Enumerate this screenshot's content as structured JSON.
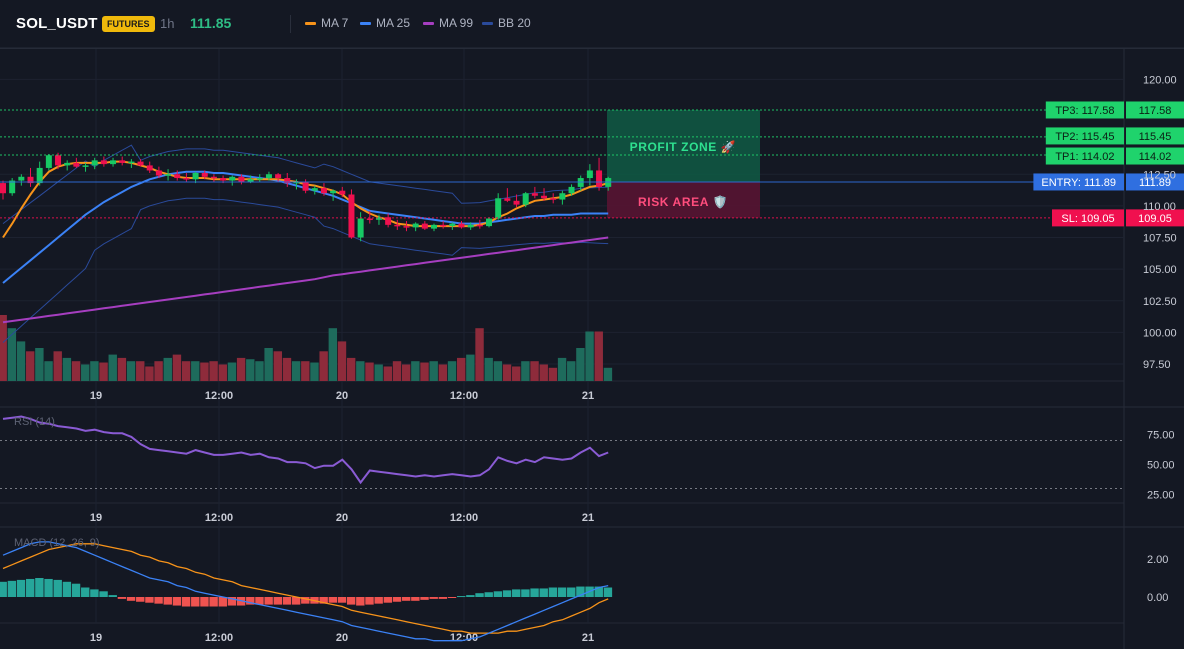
{
  "header": {
    "symbol": "SOL_USDT",
    "badge": "FUTURES",
    "timeframe": "1h",
    "last_price": "111.85",
    "indicators": [
      {
        "label": "MA 7",
        "color": "#f7931a"
      },
      {
        "label": "MA 25",
        "color": "#3b82f6"
      },
      {
        "label": "MA 99",
        "color": "#a63ec0"
      },
      {
        "label": "BB 20",
        "color": "#2a4a9a"
      }
    ]
  },
  "zones": {
    "profit": "PROFIT ZONE 🚀",
    "risk": "RISK AREA 🛡️"
  },
  "levels": [
    {
      "label": "TP3: 117.58",
      "price_text": "117.58",
      "price": 117.58,
      "color": "#1fd36c"
    },
    {
      "label": "TP2: 115.45",
      "price_text": "115.45",
      "price": 115.45,
      "color": "#1fd36c"
    },
    {
      "label": "TP1: 114.02",
      "price_text": "114.02",
      "price": 114.02,
      "color": "#1fd36c"
    },
    {
      "label": "ENTRY: 111.89",
      "price_text": "111.89",
      "price": 111.89,
      "color": "#2f6fe0"
    },
    {
      "label": "SL: 109.05",
      "price_text": "109.05",
      "price": 109.05,
      "color": "#f0104f"
    }
  ],
  "price_axis": [
    "120.00",
    "112.50",
    "110.00",
    "107.50",
    "105.00",
    "102.50",
    "100.00",
    "97.50"
  ],
  "current_price_tick": "112.50",
  "time_axis": [
    "19",
    "12:00",
    "20",
    "12:00",
    "21"
  ],
  "rsi": {
    "title": "RSI (14)",
    "axis": [
      "75.00",
      "50.00",
      "25.00"
    ]
  },
  "macd": {
    "title": "MACD (12, 26, 9)",
    "axis": [
      "2.00",
      "0.00"
    ]
  },
  "chart_data": {
    "type": "candlestick",
    "candles": [
      [
        111.8,
        112.0,
        110.5,
        111.0
      ],
      [
        111.0,
        112.2,
        110.8,
        112.0
      ],
      [
        112.0,
        112.5,
        111.6,
        112.3
      ],
      [
        112.3,
        113.0,
        111.5,
        111.8
      ],
      [
        111.8,
        113.5,
        111.6,
        113.0
      ],
      [
        113.0,
        114.1,
        112.8,
        114.0
      ],
      [
        114.0,
        114.2,
        112.9,
        113.2
      ],
      [
        113.2,
        113.6,
        112.8,
        113.4
      ],
      [
        113.4,
        113.8,
        113.0,
        113.1
      ],
      [
        113.1,
        113.4,
        112.7,
        113.2
      ],
      [
        113.2,
        113.8,
        112.9,
        113.6
      ],
      [
        113.6,
        113.9,
        113.1,
        113.3
      ],
      [
        113.3,
        113.8,
        113.1,
        113.6
      ],
      [
        113.6,
        113.9,
        113.2,
        113.4
      ],
      [
        113.4,
        113.7,
        113.0,
        113.5
      ],
      [
        113.5,
        113.7,
        113.1,
        113.2
      ],
      [
        113.2,
        113.5,
        112.6,
        112.8
      ],
      [
        112.8,
        113.1,
        112.2,
        112.4
      ],
      [
        112.4,
        112.9,
        112.0,
        112.5
      ],
      [
        112.5,
        112.8,
        112.0,
        112.2
      ],
      [
        112.2,
        112.6,
        111.9,
        112.1
      ],
      [
        112.1,
        112.7,
        111.8,
        112.6
      ],
      [
        112.6,
        112.8,
        112.1,
        112.3
      ],
      [
        112.3,
        112.5,
        111.9,
        112.2
      ],
      [
        112.2,
        112.4,
        111.8,
        112.0
      ],
      [
        112.0,
        112.4,
        111.6,
        112.3
      ],
      [
        112.3,
        112.5,
        111.7,
        111.9
      ],
      [
        111.9,
        112.4,
        111.8,
        112.1
      ],
      [
        112.1,
        112.5,
        111.9,
        112.2
      ],
      [
        112.2,
        112.7,
        112.0,
        112.5
      ],
      [
        112.5,
        112.6,
        111.9,
        112.2
      ],
      [
        112.2,
        112.6,
        111.5,
        111.8
      ],
      [
        111.8,
        112.1,
        111.3,
        111.9
      ],
      [
        111.9,
        112.1,
        111.0,
        111.2
      ],
      [
        111.2,
        111.6,
        110.9,
        111.4
      ],
      [
        111.4,
        111.8,
        110.8,
        111.0
      ],
      [
        111.0,
        111.3,
        110.4,
        111.2
      ],
      [
        111.2,
        111.5,
        110.7,
        110.9
      ],
      [
        110.9,
        111.3,
        107.4,
        107.5
      ],
      [
        107.5,
        109.5,
        107.2,
        109.0
      ],
      [
        109.0,
        109.6,
        108.6,
        108.9
      ],
      [
        108.9,
        109.3,
        108.5,
        109.1
      ],
      [
        109.1,
        109.4,
        108.3,
        108.5
      ],
      [
        108.5,
        108.9,
        108.1,
        108.4
      ],
      [
        108.4,
        108.8,
        108.0,
        108.3
      ],
      [
        108.3,
        108.7,
        108.0,
        108.6
      ],
      [
        108.6,
        108.8,
        108.1,
        108.2
      ],
      [
        108.2,
        108.6,
        108.0,
        108.5
      ],
      [
        108.5,
        108.8,
        108.2,
        108.4
      ],
      [
        108.4,
        108.7,
        108.1,
        108.6
      ],
      [
        108.6,
        108.8,
        108.2,
        108.3
      ],
      [
        108.3,
        108.7,
        108.1,
        108.5
      ],
      [
        108.5,
        108.9,
        108.2,
        108.4
      ],
      [
        108.4,
        109.1,
        108.3,
        109.0
      ],
      [
        109.0,
        111.0,
        108.9,
        110.6
      ],
      [
        110.6,
        111.4,
        110.3,
        110.4
      ],
      [
        110.4,
        110.9,
        109.9,
        110.1
      ],
      [
        110.1,
        111.1,
        109.9,
        111.0
      ],
      [
        111.0,
        111.5,
        110.6,
        110.8
      ],
      [
        110.8,
        111.4,
        110.4,
        110.6
      ],
      [
        110.6,
        111.0,
        110.2,
        110.5
      ],
      [
        110.5,
        111.2,
        110.1,
        111.0
      ],
      [
        111.0,
        111.7,
        110.8,
        111.5
      ],
      [
        111.5,
        112.4,
        111.2,
        112.2
      ],
      [
        112.2,
        113.3,
        111.6,
        112.8
      ],
      [
        112.8,
        113.8,
        111.2,
        111.5
      ],
      [
        111.5,
        112.3,
        111.2,
        112.2
      ]
    ],
    "volume": [
      1.0,
      0.8,
      0.6,
      0.45,
      0.5,
      0.3,
      0.45,
      0.35,
      0.3,
      0.25,
      0.3,
      0.28,
      0.4,
      0.35,
      0.3,
      0.3,
      0.22,
      0.3,
      0.35,
      0.4,
      0.3,
      0.3,
      0.28,
      0.3,
      0.25,
      0.28,
      0.35,
      0.33,
      0.3,
      0.5,
      0.45,
      0.35,
      0.3,
      0.3,
      0.28,
      0.45,
      0.8,
      0.6,
      0.35,
      0.3,
      0.28,
      0.25,
      0.22,
      0.3,
      0.25,
      0.3,
      0.28,
      0.3,
      0.25,
      0.3,
      0.35,
      0.4,
      0.8,
      0.35,
      0.3,
      0.25,
      0.22,
      0.3,
      0.3,
      0.25,
      0.2,
      0.35,
      0.3,
      0.5,
      0.75,
      0.75,
      0.2
    ],
    "ma7": [
      107.5,
      108.6,
      109.8,
      110.9,
      111.9,
      112.7,
      113.1,
      113.3,
      113.4,
      113.4,
      113.4,
      113.4,
      113.5,
      113.5,
      113.4,
      113.2,
      113.0,
      112.7,
      112.5,
      112.3,
      112.2,
      112.2,
      112.2,
      112.1,
      112.1,
      112.1,
      112.1,
      112.1,
      112.1,
      112.1,
      112.1,
      112.0,
      111.9,
      111.7,
      111.6,
      111.4,
      111.2,
      110.9,
      110.3,
      109.8,
      109.4,
      109.1,
      108.9,
      108.6,
      108.5,
      108.4,
      108.4,
      108.4,
      108.4,
      108.4,
      108.4,
      108.4,
      108.5,
      108.7,
      109.1,
      109.4,
      109.8,
      110.1,
      110.4,
      110.5,
      110.6,
      110.7,
      110.9,
      111.2,
      111.5,
      111.6,
      111.8
    ],
    "ma25": [
      103.9,
      104.5,
      105.1,
      105.7,
      106.3,
      106.9,
      107.5,
      108.1,
      108.7,
      109.3,
      109.8,
      110.3,
      110.7,
      111.1,
      111.5,
      111.8,
      112.1,
      112.3,
      112.5,
      112.6,
      112.7,
      112.7,
      112.7,
      112.6,
      112.6,
      112.5,
      112.4,
      112.3,
      112.2,
      112.1,
      112.0,
      111.8,
      111.6,
      111.4,
      111.2,
      111.0,
      110.8,
      110.5,
      110.2,
      109.9,
      109.6,
      109.5,
      109.4,
      109.3,
      109.2,
      109.1,
      109.0,
      108.9,
      108.8,
      108.7,
      108.6,
      108.6,
      108.6,
      108.7,
      108.8,
      108.9,
      109.0,
      109.1,
      109.2,
      109.2,
      109.3,
      109.3,
      109.3,
      109.4,
      109.4,
      109.4,
      109.4
    ],
    "ma99": [
      100.8,
      100.9,
      101.0,
      101.1,
      101.2,
      101.3,
      101.4,
      101.5,
      101.6,
      101.7,
      101.8,
      101.9,
      102.0,
      102.1,
      102.2,
      102.3,
      102.4,
      102.5,
      102.6,
      102.7,
      102.8,
      102.9,
      103.0,
      103.1,
      103.2,
      103.3,
      103.4,
      103.5,
      103.6,
      103.7,
      103.8,
      103.9,
      104.0,
      104.1,
      104.2,
      104.35,
      104.5,
      104.6,
      104.7,
      104.8,
      104.9,
      105.0,
      105.1,
      105.2,
      105.3,
      105.4,
      105.5,
      105.6,
      105.7,
      105.8,
      105.9,
      106.0,
      106.1,
      106.2,
      106.3,
      106.4,
      106.5,
      106.6,
      106.7,
      106.8,
      106.9,
      107.0,
      107.1,
      107.2,
      107.3,
      107.4,
      107.5
    ],
    "rsi": [
      88,
      89,
      90,
      88,
      85,
      84,
      82,
      81,
      80,
      78,
      79,
      77,
      76,
      76,
      73,
      67,
      63,
      62,
      61,
      60,
      59,
      62,
      60,
      58,
      58,
      59,
      60,
      58,
      59,
      56,
      55,
      52,
      52,
      51,
      47,
      49,
      49,
      54,
      46,
      35,
      45,
      44,
      43,
      42,
      41,
      40,
      41,
      40,
      41,
      42,
      41,
      40,
      41,
      46,
      56,
      53,
      51,
      54,
      52,
      56,
      55,
      54,
      55,
      60,
      64,
      57,
      60
    ],
    "macd": [
      2.2,
      2.4,
      2.6,
      2.8,
      2.9,
      2.9,
      2.8,
      2.7,
      2.6,
      2.4,
      2.2,
      2.0,
      1.8,
      1.6,
      1.4,
      1.2,
      1.0,
      0.9,
      0.8,
      0.6,
      0.5,
      0.3,
      0.2,
      0.1,
      0.0,
      -0.1,
      -0.2,
      -0.3,
      -0.4,
      -0.5,
      -0.6,
      -0.7,
      -0.8,
      -0.9,
      -1.0,
      -1.1,
      -1.2,
      -1.3,
      -1.5,
      -1.6,
      -1.7,
      -1.8,
      -1.9,
      -2.0,
      -2.1,
      -2.2,
      -2.2,
      -2.3,
      -2.3,
      -2.3,
      -2.3,
      -2.2,
      -2.1,
      -1.9,
      -1.7,
      -1.5,
      -1.3,
      -1.1,
      -0.9,
      -0.7,
      -0.5,
      -0.3,
      -0.1,
      0.1,
      0.3,
      0.5,
      0.6
    ],
    "macd_signal": [
      1.5,
      1.7,
      1.9,
      2.1,
      2.3,
      2.5,
      2.6,
      2.7,
      2.8,
      2.8,
      2.8,
      2.7,
      2.6,
      2.5,
      2.4,
      2.2,
      2.1,
      1.9,
      1.8,
      1.6,
      1.5,
      1.3,
      1.2,
      1.0,
      0.9,
      0.8,
      0.6,
      0.5,
      0.4,
      0.3,
      0.2,
      0.1,
      0.0,
      -0.1,
      -0.2,
      -0.3,
      -0.4,
      -0.5,
      -0.7,
      -0.8,
      -0.9,
      -1.0,
      -1.1,
      -1.2,
      -1.3,
      -1.4,
      -1.5,
      -1.6,
      -1.7,
      -1.8,
      -1.8,
      -1.9,
      -1.9,
      -1.9,
      -1.9,
      -1.8,
      -1.8,
      -1.7,
      -1.6,
      -1.5,
      -1.3,
      -1.2,
      -1.0,
      -0.8,
      -0.6,
      -0.3,
      -0.1
    ],
    "macd_hist": [
      0.8,
      0.85,
      0.9,
      0.95,
      1.0,
      0.95,
      0.9,
      0.8,
      0.7,
      0.5,
      0.4,
      0.3,
      0.1,
      -0.1,
      -0.2,
      -0.25,
      -0.3,
      -0.35,
      -0.4,
      -0.45,
      -0.5,
      -0.5,
      -0.5,
      -0.5,
      -0.5,
      -0.45,
      -0.45,
      -0.4,
      -0.4,
      -0.4,
      -0.4,
      -0.4,
      -0.4,
      -0.35,
      -0.35,
      -0.35,
      -0.3,
      -0.3,
      -0.4,
      -0.45,
      -0.4,
      -0.35,
      -0.3,
      -0.25,
      -0.2,
      -0.2,
      -0.15,
      -0.1,
      -0.1,
      -0.05,
      0.05,
      0.1,
      0.2,
      0.25,
      0.3,
      0.35,
      0.4,
      0.4,
      0.45,
      0.45,
      0.5,
      0.5,
      0.5,
      0.55,
      0.55,
      0.55,
      0.5
    ]
  }
}
